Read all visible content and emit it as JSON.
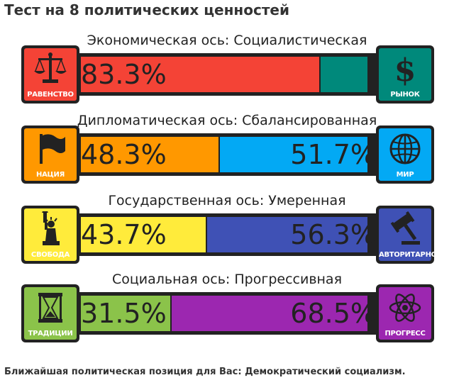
{
  "title": "Тест на 8 политических ценностей",
  "axes": [
    {
      "label": "Экономическая ось: Социалистическая",
      "left": {
        "name": "РАВЕНСТВО",
        "percent_text": "83.3%",
        "value": 83.3,
        "color": "#f44336",
        "icon": "scales-icon"
      },
      "right": {
        "name": "РЫНОК",
        "percent_text": "",
        "value": 16.7,
        "color": "#00897b",
        "icon": "dollar-icon"
      }
    },
    {
      "label": "Дипломатическая ось: Сбалансированная",
      "left": {
        "name": "НАЦИЯ",
        "percent_text": "48.3%",
        "value": 48.3,
        "color": "#ff9800",
        "icon": "flag-icon"
      },
      "right": {
        "name": "МИР",
        "percent_text": "51.7%",
        "value": 51.7,
        "color": "#03a9f4",
        "icon": "globe-icon"
      }
    },
    {
      "label": "Государственная ось: Умеренная",
      "left": {
        "name": "СВОБОДА",
        "percent_text": "43.7%",
        "value": 43.7,
        "color": "#ffeb3b",
        "icon": "liberty-icon"
      },
      "right": {
        "name": "АВТОРИТАРНОСТЬ",
        "percent_text": "56.3%",
        "value": 56.3,
        "color": "#3f51b5",
        "icon": "gavel-icon"
      }
    },
    {
      "label": "Социальная ось: Прогрессивная",
      "left": {
        "name": "ТРАДИЦИИ",
        "percent_text": "31.5%",
        "value": 31.5,
        "color": "#8bc34a",
        "icon": "hourglass-icon"
      },
      "right": {
        "name": "ПРОГРЕСС",
        "percent_text": "68.5%",
        "value": 68.5,
        "color": "#9c27b0",
        "icon": "atom-icon"
      }
    }
  ],
  "footer": "Ближайшая политическая позиция для Вас: Демократический социализм."
}
